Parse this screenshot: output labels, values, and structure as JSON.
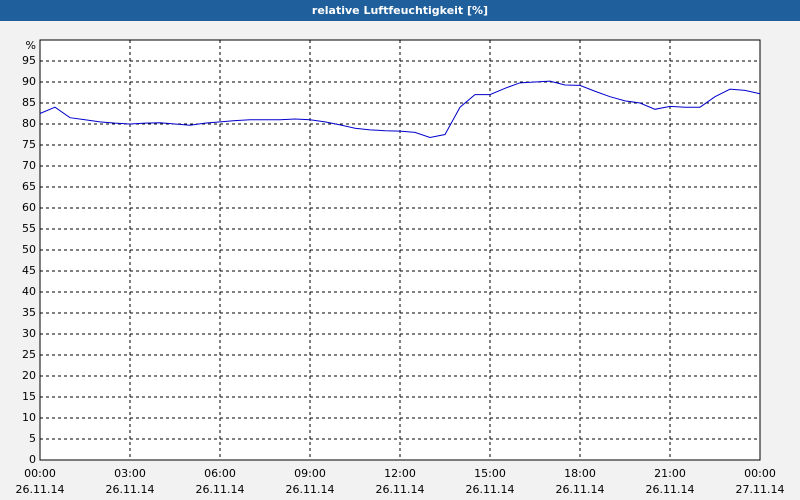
{
  "chart_data": {
    "type": "line",
    "title": "relative Luftfeuchtigkeit [%]",
    "y_label": "%",
    "x": [
      "26.11.14 00:00",
      "26.11.14 00:30",
      "26.11.14 01:00",
      "26.11.14 01:30",
      "26.11.14 02:00",
      "26.11.14 02:30",
      "26.11.14 03:00",
      "26.11.14 03:30",
      "26.11.14 04:00",
      "26.11.14 04:30",
      "26.11.14 05:00",
      "26.11.14 05:30",
      "26.11.14 06:00",
      "26.11.14 06:30",
      "26.11.14 07:00",
      "26.11.14 07:30",
      "26.11.14 08:00",
      "26.11.14 08:30",
      "26.11.14 09:00",
      "26.11.14 09:30",
      "26.11.14 10:00",
      "26.11.14 10:30",
      "26.11.14 11:00",
      "26.11.14 11:30",
      "26.11.14 12:00",
      "26.11.14 12:30",
      "26.11.14 13:00",
      "26.11.14 13:30",
      "26.11.14 14:00",
      "26.11.14 14:30",
      "26.11.14 15:00",
      "26.11.14 15:30",
      "26.11.14 16:00",
      "26.11.14 16:30",
      "26.11.14 17:00",
      "26.11.14 17:30",
      "26.11.14 18:00",
      "26.11.14 18:30",
      "26.11.14 19:00",
      "26.11.14 19:30",
      "26.11.14 20:00",
      "26.11.14 20:30",
      "26.11.14 21:00",
      "26.11.14 21:30",
      "26.11.14 22:00",
      "26.11.14 22:30",
      "26.11.14 23:00",
      "26.11.14 23:30",
      "27.11.14 00:00"
    ],
    "series": [
      {
        "color": "#0000cc",
        "values": [
          82.5,
          84,
          81.5,
          81,
          80.5,
          80.2,
          80,
          80.2,
          80.3,
          80,
          79.7,
          80.2,
          80.5,
          80.8,
          81,
          81,
          81,
          81.2,
          81,
          80.5,
          79.8,
          79,
          78.6,
          78.4,
          78.3,
          78,
          76.8,
          77.5,
          84,
          87,
          87,
          88.5,
          89.8,
          90,
          90.2,
          89.3,
          89.2,
          87.8,
          86.5,
          85.5,
          85,
          83.5,
          84.2,
          84,
          84,
          86.5,
          88.3,
          88,
          87.2
        ]
      }
    ],
    "ylim": [
      0,
      100
    ],
    "yticks": [
      0,
      5,
      10,
      15,
      20,
      25,
      30,
      35,
      40,
      45,
      50,
      55,
      60,
      65,
      70,
      75,
      80,
      85,
      90,
      95
    ],
    "xlim": [
      "26.11.14 00:00",
      "27.11.14 00:00"
    ],
    "xticks": [
      {
        "value": "26.11.14 00:00",
        "label": [
          "00:00",
          "26.11.14"
        ]
      },
      {
        "value": "26.11.14 03:00",
        "label": [
          "03:00",
          "26.11.14"
        ]
      },
      {
        "value": "26.11.14 06:00",
        "label": [
          "06:00",
          "26.11.14"
        ]
      },
      {
        "value": "26.11.14 09:00",
        "label": [
          "09:00",
          "26.11.14"
        ]
      },
      {
        "value": "26.11.14 12:00",
        "label": [
          "12:00",
          "26.11.14"
        ]
      },
      {
        "value": "26.11.14 15:00",
        "label": [
          "15:00",
          "26.11.14"
        ]
      },
      {
        "value": "26.11.14 18:00",
        "label": [
          "18:00",
          "26.11.14"
        ]
      },
      {
        "value": "26.11.14 21:00",
        "label": [
          "21:00",
          "26.11.14"
        ]
      },
      {
        "value": "27.11.14 00:00",
        "label": [
          "00:00",
          "27.11.14"
        ]
      }
    ],
    "grid": true
  }
}
